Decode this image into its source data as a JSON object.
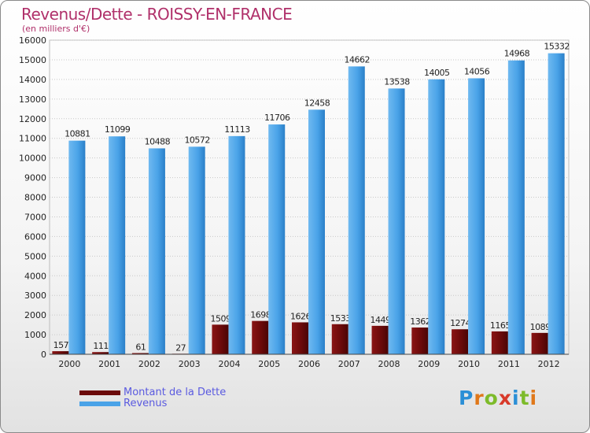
{
  "header": {
    "title": "Revenus/Dette - ROISSY-EN-FRANCE",
    "subtitle": "(en milliers d'€)"
  },
  "legend": [
    {
      "label": "Montant de la Dette",
      "color": "#6b0a0a"
    },
    {
      "label": "Revenus",
      "color": "#4aa3e8"
    }
  ],
  "logo": {
    "letters": [
      {
        "char": "P",
        "color": "#2b8fd6"
      },
      {
        "char": "r",
        "color": "#e0781a"
      },
      {
        "char": "o",
        "color": "#7dbb2a"
      },
      {
        "char": "x",
        "color": "#d83a2a"
      },
      {
        "char": "i",
        "color": "#2b8fd6"
      },
      {
        "char": "t",
        "color": "#7dbb2a"
      },
      {
        "char": "i",
        "color": "#e0781a"
      }
    ]
  },
  "chart_data": {
    "type": "bar",
    "title": "Revenus/Dette - ROISSY-EN-FRANCE",
    "subtitle": "(en milliers d'€)",
    "categories": [
      "2000",
      "2001",
      "2002",
      "2003",
      "2004",
      "2005",
      "2006",
      "2007",
      "2008",
      "2009",
      "2010",
      "2011",
      "2012"
    ],
    "series": [
      {
        "name": "Montant de la Dette",
        "color": "#6b0a0a",
        "values": [
          157,
          111,
          61,
          27,
          1509,
          1698,
          1626,
          1533,
          1449,
          1362,
          1274,
          1165,
          1089
        ],
        "labels": [
          "157",
          "111",
          "61",
          "27",
          "1509",
          "1698",
          "1626",
          "1533",
          "1449",
          "1362",
          "1274",
          "1165",
          "1089"
        ]
      },
      {
        "name": "Revenus",
        "color": "#4aa3e8",
        "values": [
          10881,
          11099,
          10488,
          10572,
          11113,
          11706,
          12458,
          14662,
          13538,
          14005,
          14056,
          14968,
          15332
        ],
        "labels": [
          "10881",
          "11099",
          "10488",
          "10572",
          "11113",
          "11706",
          "12458",
          "14662",
          "13538",
          "14005",
          "14056",
          "14968",
          "15332"
        ]
      }
    ],
    "ylim": [
      0,
      16000
    ],
    "yticks": [
      0,
      1000,
      2000,
      3000,
      4000,
      5000,
      6000,
      7000,
      8000,
      9000,
      10000,
      11000,
      12000,
      13000,
      14000,
      15000,
      16000
    ],
    "grid": true,
    "legend_position": "bottom-left"
  }
}
